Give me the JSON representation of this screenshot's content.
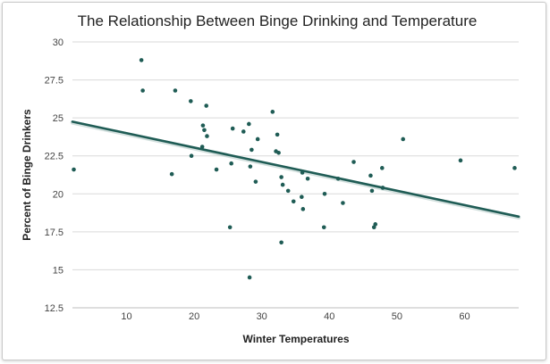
{
  "chart_data": {
    "type": "scatter",
    "title": "The Relationship Between Binge Drinking and Temperature",
    "xlabel": "Winter Temperatures",
    "ylabel": "Percent of Binge Drinkers",
    "xlim": [
      2,
      68
    ],
    "ylim": [
      12.5,
      30
    ],
    "x_ticks": [
      10,
      20,
      30,
      40,
      50,
      60
    ],
    "y_ticks": [
      12.5,
      15,
      17.5,
      20,
      22.5,
      25,
      27.5,
      30
    ],
    "grid": "horizontal",
    "colors": {
      "points": "#1f5c55",
      "trend": "#1f5c55"
    },
    "series": [
      {
        "points": [
          [
            2.2,
            21.6
          ],
          [
            12.2,
            28.8
          ],
          [
            12.4,
            26.8
          ],
          [
            16.7,
            21.3
          ],
          [
            17.2,
            26.8
          ],
          [
            19.5,
            26.1
          ],
          [
            19.6,
            22.5
          ],
          [
            21.2,
            23.1
          ],
          [
            21.3,
            24.5
          ],
          [
            21.5,
            24.2
          ],
          [
            21.8,
            25.8
          ],
          [
            21.9,
            23.8
          ],
          [
            23.3,
            21.6
          ],
          [
            25.3,
            17.8
          ],
          [
            25.5,
            22.0
          ],
          [
            25.7,
            24.3
          ],
          [
            27.3,
            24.1
          ],
          [
            28.1,
            24.6
          ],
          [
            28.2,
            14.5
          ],
          [
            28.3,
            21.8
          ],
          [
            28.5,
            22.9
          ],
          [
            29.1,
            20.8
          ],
          [
            29.4,
            23.6
          ],
          [
            31.6,
            25.4
          ],
          [
            32.1,
            22.8
          ],
          [
            32.3,
            23.9
          ],
          [
            32.5,
            22.7
          ],
          [
            32.9,
            16.8
          ],
          [
            32.9,
            21.1
          ],
          [
            33.1,
            20.6
          ],
          [
            33.9,
            20.2
          ],
          [
            34.7,
            19.5
          ],
          [
            35.9,
            19.8
          ],
          [
            36.0,
            21.4
          ],
          [
            36.1,
            19.0
          ],
          [
            36.8,
            21.0
          ],
          [
            39.2,
            17.8
          ],
          [
            39.3,
            20.0
          ],
          [
            41.3,
            21.0
          ],
          [
            42.0,
            19.4
          ],
          [
            43.6,
            22.1
          ],
          [
            46.1,
            21.2
          ],
          [
            46.3,
            20.2
          ],
          [
            46.6,
            17.8
          ],
          [
            46.8,
            18.0
          ],
          [
            47.8,
            21.7
          ],
          [
            47.9,
            20.4
          ],
          [
            50.9,
            23.6
          ],
          [
            59.4,
            22.2
          ],
          [
            67.4,
            21.7
          ]
        ]
      }
    ],
    "trendline": {
      "x": [
        2,
        68
      ],
      "y": [
        24.75,
        18.5
      ]
    }
  }
}
